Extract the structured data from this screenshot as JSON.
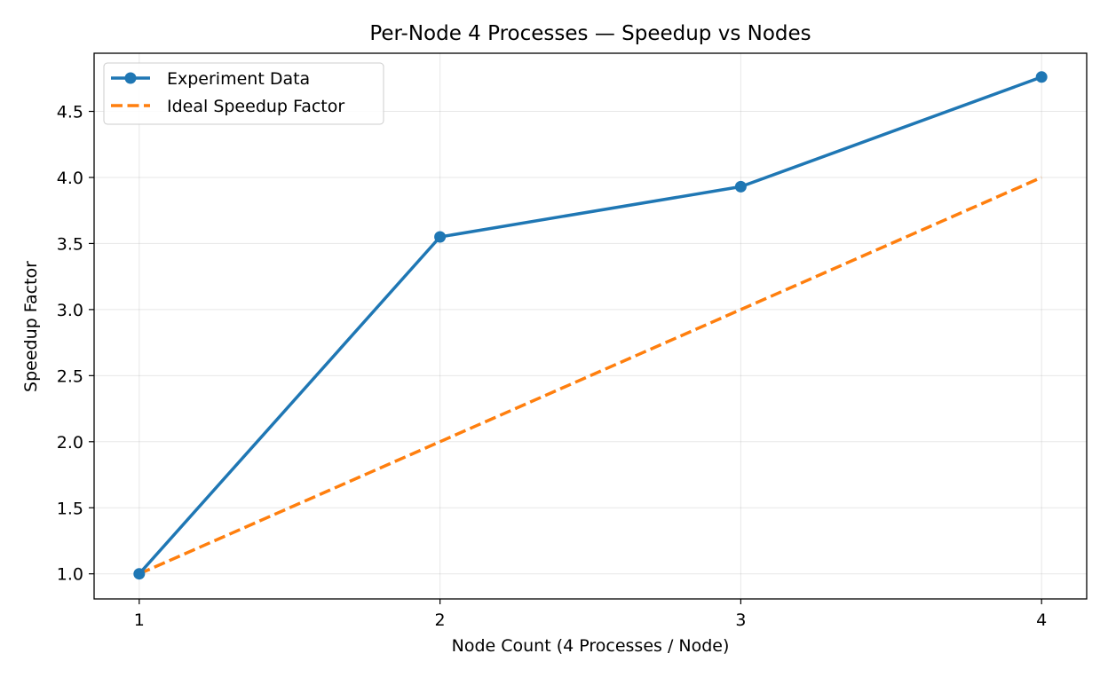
{
  "chart_data": {
    "type": "line",
    "title": "Per-Node 4 Processes — Speedup vs Nodes",
    "xlabel": "Node Count (4 Processes / Node)",
    "ylabel": "Speedup Factor",
    "x": [
      1,
      2,
      3,
      4
    ],
    "x_ticks": [
      "1",
      "2",
      "3",
      "4"
    ],
    "y_ticks": [
      "1.0",
      "1.5",
      "2.0",
      "2.5",
      "3.0",
      "3.5",
      "4.0",
      "4.5"
    ],
    "y_tick_values": [
      1.0,
      1.5,
      2.0,
      2.5,
      3.0,
      3.5,
      4.0,
      4.5
    ],
    "xlim": [
      0.85,
      4.15
    ],
    "ylim": [
      0.81,
      4.94
    ],
    "grid": true,
    "legend_position": "top-left",
    "series": [
      {
        "name": "Experiment Data",
        "values": [
          1.0,
          3.55,
          3.93,
          4.76
        ],
        "color": "#1f77b4",
        "style": "solid",
        "marker": "circle"
      },
      {
        "name": "Ideal Speedup Factor",
        "values": [
          1.0,
          2.0,
          3.0,
          4.0
        ],
        "color": "#ff7f0e",
        "style": "dashed",
        "marker": "none"
      }
    ]
  }
}
